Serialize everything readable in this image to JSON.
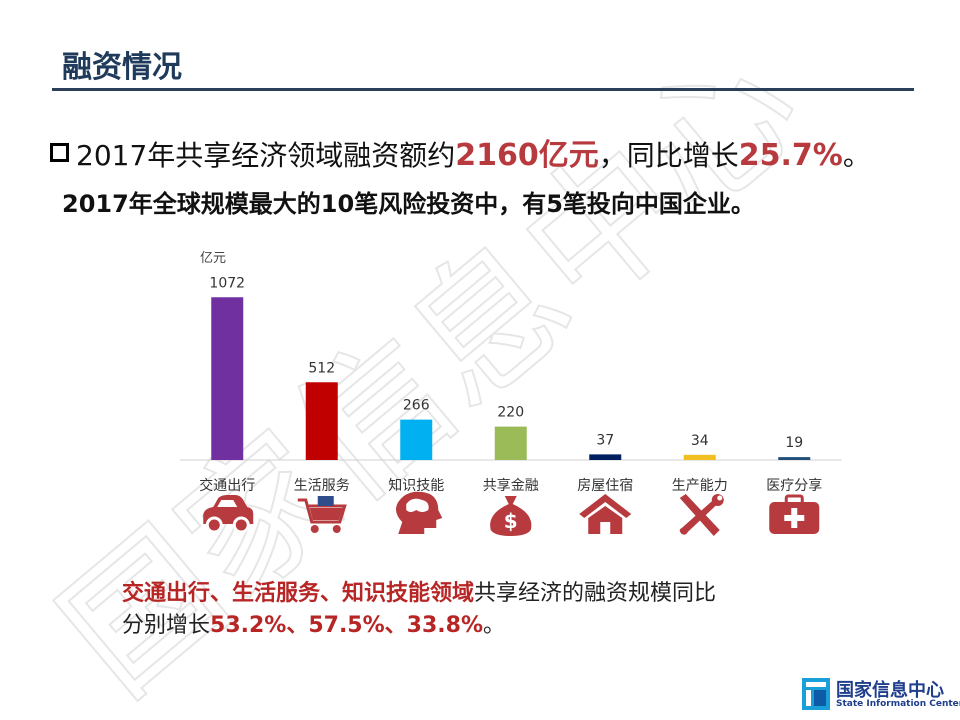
{
  "page": {
    "title": "融资情况",
    "line1_prefix": "2017年共享经济领域融资额约",
    "line1_amount": "2160亿元",
    "line1_mid": "，同比增长",
    "line1_rate": "25.7%",
    "line1_suffix": "。",
    "line2": "2017年全球规模最大的10笔风险投资中，有5笔投向中国企业。",
    "bottom_red": "交通出行、生活服务、知识技能领域",
    "bottom_rest": "共享经济的融资规模同比",
    "bottom_line2_prefix": "分别增长",
    "bottom_line2_rates": "53.2%、57.5%、33.8%",
    "bottom_line2_suffix": "。",
    "logo_cn": "国家信息中心",
    "logo_en": "State Information Center",
    "watermark": "国家信息中心"
  },
  "chart_data": {
    "type": "bar",
    "unit_label": "亿元",
    "categories": [
      "交通出行",
      "生活服务",
      "知识技能",
      "共享金融",
      "房屋住宿",
      "生产能力",
      "医疗分享"
    ],
    "values": [
      1072,
      512,
      266,
      220,
      37,
      34,
      19
    ],
    "colors": [
      "#7030a0",
      "#c00000",
      "#00b0f0",
      "#9bbb59",
      "#002060",
      "#f0c020",
      "#1f4e79"
    ],
    "icons": [
      "car-icon",
      "shopping-cart-icon",
      "brain-head-icon",
      "money-bag-icon",
      "house-icon",
      "tools-icon",
      "medical-kit-icon"
    ],
    "ylim": [
      0,
      1100
    ]
  }
}
